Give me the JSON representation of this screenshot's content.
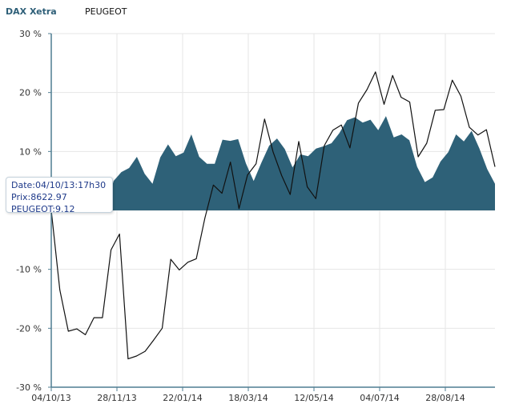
{
  "chart_data": {
    "type": "area",
    "series": [
      {
        "name": "DAX Xetra",
        "type": "area",
        "values": [
          0,
          0,
          0,
          0,
          0,
          0,
          0,
          0,
          5,
          6.5,
          7.2,
          9.1,
          6.2,
          4.5,
          9,
          11.2,
          9.2,
          9.8,
          12.9,
          9.1,
          7.9,
          7.9,
          12,
          11.8,
          12.1,
          8,
          5,
          8.1,
          11,
          12.2,
          10.4,
          7.3,
          9.5,
          9.2,
          10.5,
          10.9,
          11.4,
          13.1,
          15.3,
          15.8,
          14.9,
          15.4,
          13.6,
          16,
          12.4,
          12.9,
          11.9,
          7.4,
          4.8,
          5.6,
          8.3,
          9.9,
          12.9,
          11.7,
          13.5,
          10.5,
          7,
          4.5
        ]
      },
      {
        "name": "PEUGEOT",
        "type": "line",
        "values": [
          0,
          -13.5,
          -20.5,
          -20.1,
          -21.1,
          -18.2,
          -18.2,
          -6.7,
          -4,
          -25.2,
          -24.7,
          -23.9,
          -22,
          -20,
          -8.3,
          -10.1,
          -8.8,
          -8.2,
          -1.3,
          4.3,
          2.9,
          8.2,
          0.3,
          6,
          7.9,
          15.5,
          9.9,
          5.9,
          2.7,
          11.7,
          4,
          2,
          11,
          13.6,
          14.5,
          10.6,
          18.2,
          20.5,
          23.5,
          18,
          22.9,
          19.2,
          18.4,
          9.1,
          11.4,
          17,
          17.1,
          22.1,
          19.4,
          14.1,
          12.8,
          13.7,
          7.4
        ]
      }
    ],
    "x_tick_labels": [
      "04/10/13",
      "28/11/13",
      "22/01/14",
      "18/03/14",
      "12/05/14",
      "04/07/14",
      "28/08/14"
    ],
    "y_ticks": [
      30,
      20,
      10,
      0,
      -10,
      -20,
      -30
    ],
    "y_tick_labels": [
      "30 %",
      "20 %",
      "10 %",
      "",
      "-10 %",
      "-20 %",
      "-30 %"
    ],
    "ylim": [
      -30,
      30
    ],
    "grid": true,
    "legend": "top-left",
    "colors": {
      "area": "#2e6178",
      "line": "#111111",
      "axis": "#4f7d92",
      "grid": "#e6e6e6"
    }
  },
  "tooltip": {
    "date": "Date:04/10/13:17h30",
    "prix": "Prix:8622.97",
    "peugeot": "PEUGEOT:9.12"
  }
}
